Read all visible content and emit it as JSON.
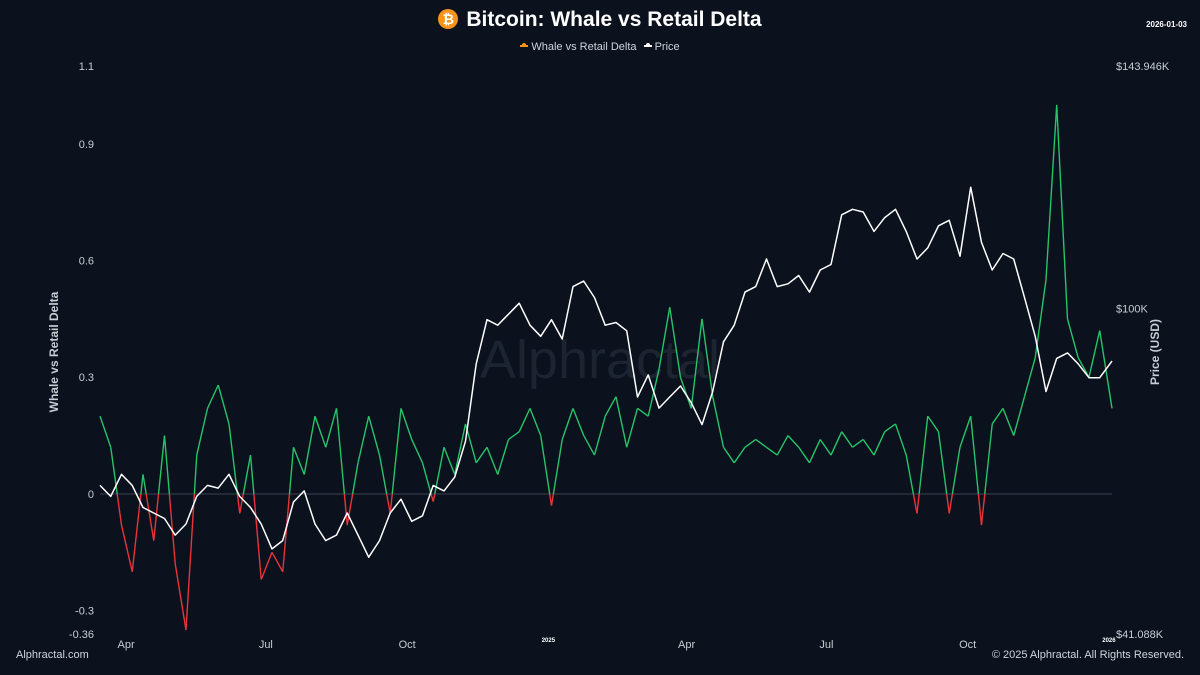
{
  "header": {
    "title": "Bitcoin: Whale vs Retail Delta",
    "date": "2026-01-03",
    "logo_icon": "bitcoin-icon"
  },
  "legend": [
    {
      "label": "Whale vs Retail Delta",
      "color": "#f7931a"
    },
    {
      "label": "Price",
      "color": "#ffffff"
    }
  ],
  "watermark": "Alphractal",
  "footer": {
    "left": "Alphractal.com",
    "right": "© 2025 Alphractal. All Rights Reserved."
  },
  "chart_data": {
    "type": "line",
    "title": "Bitcoin: Whale vs Retail Delta",
    "ylabel": "Whale vs Retail Delta",
    "y2label": "Price (USD)",
    "ylim": [
      -0.36,
      1.1
    ],
    "y_ticks": [
      "1.1",
      "0.9",
      "0.6",
      "0.3",
      "0",
      "-0.3",
      "-0.36"
    ],
    "y_tick_values": [
      1.1,
      0.9,
      0.6,
      0.3,
      0,
      -0.3,
      -0.36
    ],
    "y2_ticks": [
      "$143.946K",
      "$100K",
      "$41.088K"
    ],
    "y2_tick_values": [
      143946,
      100000,
      41088
    ],
    "x_ticks": [
      {
        "label": "Apr",
        "date": "2024-04-01"
      },
      {
        "label": "Jul",
        "date": "2024-07-01"
      },
      {
        "label": "Oct",
        "date": "2024-10-01"
      },
      {
        "label": "2025",
        "date": "2025-01-01",
        "year": true
      },
      {
        "label": "Apr",
        "date": "2025-04-01"
      },
      {
        "label": "Jul",
        "date": "2025-07-01"
      },
      {
        "label": "Oct",
        "date": "2025-10-01"
      },
      {
        "label": "2026",
        "date": "2026-01-01",
        "year": true
      }
    ],
    "x_range": [
      "2024-03-15",
      "2026-01-03"
    ],
    "grid": false,
    "legend_position": "top-center",
    "colors": {
      "positive": "#27c469",
      "negative": "#e8343a",
      "price": "#ffffff",
      "zero_line": "#3a4252"
    },
    "series": [
      {
        "name": "Whale vs Retail Delta",
        "points": [
          [
            "2024-03-15",
            0.2
          ],
          [
            "2024-03-22",
            0.12
          ],
          [
            "2024-03-29",
            -0.08
          ],
          [
            "2024-04-05",
            -0.2
          ],
          [
            "2024-04-12",
            0.05
          ],
          [
            "2024-04-19",
            -0.12
          ],
          [
            "2024-04-26",
            0.15
          ],
          [
            "2024-05-03",
            -0.18
          ],
          [
            "2024-05-10",
            -0.35
          ],
          [
            "2024-05-17",
            0.1
          ],
          [
            "2024-05-24",
            0.22
          ],
          [
            "2024-05-31",
            0.28
          ],
          [
            "2024-06-07",
            0.18
          ],
          [
            "2024-06-14",
            -0.05
          ],
          [
            "2024-06-21",
            0.1
          ],
          [
            "2024-06-28",
            -0.22
          ],
          [
            "2024-07-05",
            -0.15
          ],
          [
            "2024-07-12",
            -0.2
          ],
          [
            "2024-07-19",
            0.12
          ],
          [
            "2024-07-26",
            0.05
          ],
          [
            "2024-08-02",
            0.2
          ],
          [
            "2024-08-09",
            0.12
          ],
          [
            "2024-08-16",
            0.22
          ],
          [
            "2024-08-23",
            -0.08
          ],
          [
            "2024-08-30",
            0.08
          ],
          [
            "2024-09-06",
            0.2
          ],
          [
            "2024-09-13",
            0.1
          ],
          [
            "2024-09-20",
            -0.05
          ],
          [
            "2024-09-27",
            0.22
          ],
          [
            "2024-10-04",
            0.14
          ],
          [
            "2024-10-11",
            0.08
          ],
          [
            "2024-10-18",
            -0.02
          ],
          [
            "2024-10-25",
            0.12
          ],
          [
            "2024-11-01",
            0.05
          ],
          [
            "2024-11-08",
            0.18
          ],
          [
            "2024-11-15",
            0.08
          ],
          [
            "2024-11-22",
            0.12
          ],
          [
            "2024-11-29",
            0.05
          ],
          [
            "2024-12-06",
            0.14
          ],
          [
            "2024-12-13",
            0.16
          ],
          [
            "2024-12-20",
            0.22
          ],
          [
            "2024-12-27",
            0.15
          ],
          [
            "2025-01-03",
            -0.03
          ],
          [
            "2025-01-10",
            0.14
          ],
          [
            "2025-01-17",
            0.22
          ],
          [
            "2025-01-24",
            0.15
          ],
          [
            "2025-01-31",
            0.1
          ],
          [
            "2025-02-07",
            0.2
          ],
          [
            "2025-02-14",
            0.25
          ],
          [
            "2025-02-21",
            0.12
          ],
          [
            "2025-02-28",
            0.22
          ],
          [
            "2025-03-07",
            0.2
          ],
          [
            "2025-03-14",
            0.32
          ],
          [
            "2025-03-21",
            0.48
          ],
          [
            "2025-03-28",
            0.3
          ],
          [
            "2025-04-04",
            0.22
          ],
          [
            "2025-04-11",
            0.45
          ],
          [
            "2025-04-18",
            0.25
          ],
          [
            "2025-04-25",
            0.12
          ],
          [
            "2025-05-02",
            0.08
          ],
          [
            "2025-05-09",
            0.12
          ],
          [
            "2025-05-16",
            0.14
          ],
          [
            "2025-05-23",
            0.12
          ],
          [
            "2025-05-30",
            0.1
          ],
          [
            "2025-06-06",
            0.15
          ],
          [
            "2025-06-13",
            0.12
          ],
          [
            "2025-06-20",
            0.08
          ],
          [
            "2025-06-27",
            0.14
          ],
          [
            "2025-07-04",
            0.1
          ],
          [
            "2025-07-11",
            0.16
          ],
          [
            "2025-07-18",
            0.12
          ],
          [
            "2025-07-25",
            0.14
          ],
          [
            "2025-08-01",
            0.1
          ],
          [
            "2025-08-08",
            0.16
          ],
          [
            "2025-08-15",
            0.18
          ],
          [
            "2025-08-22",
            0.1
          ],
          [
            "2025-08-29",
            -0.05
          ],
          [
            "2025-09-05",
            0.2
          ],
          [
            "2025-09-12",
            0.16
          ],
          [
            "2025-09-19",
            -0.05
          ],
          [
            "2025-09-26",
            0.12
          ],
          [
            "2025-10-03",
            0.2
          ],
          [
            "2025-10-10",
            -0.08
          ],
          [
            "2025-10-17",
            0.18
          ],
          [
            "2025-10-24",
            0.22
          ],
          [
            "2025-10-31",
            0.15
          ],
          [
            "2025-11-07",
            0.25
          ],
          [
            "2025-11-14",
            0.35
          ],
          [
            "2025-11-21",
            0.55
          ],
          [
            "2025-11-28",
            1.0
          ],
          [
            "2025-12-05",
            0.45
          ],
          [
            "2025-12-12",
            0.35
          ],
          [
            "2025-12-19",
            0.3
          ],
          [
            "2025-12-26",
            0.42
          ],
          [
            "2026-01-03",
            0.22
          ]
        ]
      },
      {
        "name": "Price",
        "points": [
          [
            "2024-03-15",
            68000
          ],
          [
            "2024-03-22",
            66000
          ],
          [
            "2024-03-29",
            70000
          ],
          [
            "2024-04-05",
            68000
          ],
          [
            "2024-04-12",
            64000
          ],
          [
            "2024-04-19",
            63000
          ],
          [
            "2024-04-26",
            62000
          ],
          [
            "2024-05-03",
            59000
          ],
          [
            "2024-05-10",
            61000
          ],
          [
            "2024-05-17",
            66000
          ],
          [
            "2024-05-24",
            68000
          ],
          [
            "2024-05-31",
            67500
          ],
          [
            "2024-06-07",
            70000
          ],
          [
            "2024-06-14",
            66000
          ],
          [
            "2024-06-21",
            64000
          ],
          [
            "2024-06-28",
            61000
          ],
          [
            "2024-07-05",
            56500
          ],
          [
            "2024-07-12",
            58000
          ],
          [
            "2024-07-19",
            65000
          ],
          [
            "2024-07-26",
            67000
          ],
          [
            "2024-08-02",
            61000
          ],
          [
            "2024-08-09",
            58000
          ],
          [
            "2024-08-16",
            59000
          ],
          [
            "2024-08-23",
            63000
          ],
          [
            "2024-08-30",
            59000
          ],
          [
            "2024-09-06",
            55000
          ],
          [
            "2024-09-13",
            58000
          ],
          [
            "2024-09-20",
            63000
          ],
          [
            "2024-09-27",
            65500
          ],
          [
            "2024-10-04",
            61500
          ],
          [
            "2024-10-11",
            62500
          ],
          [
            "2024-10-18",
            68000
          ],
          [
            "2024-10-25",
            67000
          ],
          [
            "2024-11-01",
            69500
          ],
          [
            "2024-11-08",
            76000
          ],
          [
            "2024-11-15",
            90000
          ],
          [
            "2024-11-22",
            98000
          ],
          [
            "2024-11-29",
            97000
          ],
          [
            "2024-12-06",
            99000
          ],
          [
            "2024-12-13",
            101000
          ],
          [
            "2024-12-20",
            97000
          ],
          [
            "2024-12-27",
            95000
          ],
          [
            "2025-01-03",
            98000
          ],
          [
            "2025-01-10",
            94500
          ],
          [
            "2025-01-17",
            104000
          ],
          [
            "2025-01-24",
            105000
          ],
          [
            "2025-01-31",
            102000
          ],
          [
            "2025-02-07",
            97000
          ],
          [
            "2025-02-14",
            97500
          ],
          [
            "2025-02-21",
            96000
          ],
          [
            "2025-02-28",
            84000
          ],
          [
            "2025-03-07",
            88000
          ],
          [
            "2025-03-14",
            82000
          ],
          [
            "2025-03-21",
            84000
          ],
          [
            "2025-03-28",
            86000
          ],
          [
            "2025-04-04",
            83000
          ],
          [
            "2025-04-11",
            79000
          ],
          [
            "2025-04-18",
            85000
          ],
          [
            "2025-04-25",
            94000
          ],
          [
            "2025-05-02",
            97000
          ],
          [
            "2025-05-09",
            103000
          ],
          [
            "2025-05-16",
            104000
          ],
          [
            "2025-05-23",
            109000
          ],
          [
            "2025-05-30",
            104000
          ],
          [
            "2025-06-06",
            104500
          ],
          [
            "2025-06-13",
            106000
          ],
          [
            "2025-06-20",
            103000
          ],
          [
            "2025-06-27",
            107000
          ],
          [
            "2025-07-04",
            108000
          ],
          [
            "2025-07-11",
            117000
          ],
          [
            "2025-07-18",
            118000
          ],
          [
            "2025-07-25",
            117500
          ],
          [
            "2025-08-01",
            114000
          ],
          [
            "2025-08-08",
            116500
          ],
          [
            "2025-08-15",
            118000
          ],
          [
            "2025-08-22",
            114000
          ],
          [
            "2025-08-29",
            109000
          ],
          [
            "2025-09-05",
            111000
          ],
          [
            "2025-09-12",
            115000
          ],
          [
            "2025-09-19",
            116000
          ],
          [
            "2025-09-26",
            109500
          ],
          [
            "2025-10-03",
            122000
          ],
          [
            "2025-10-10",
            112000
          ],
          [
            "2025-10-17",
            107000
          ],
          [
            "2025-10-24",
            110000
          ],
          [
            "2025-10-31",
            109000
          ],
          [
            "2025-11-07",
            102000
          ],
          [
            "2025-11-14",
            95000
          ],
          [
            "2025-11-21",
            85000
          ],
          [
            "2025-11-28",
            91000
          ],
          [
            "2025-12-05",
            92000
          ],
          [
            "2025-12-12",
            90000
          ],
          [
            "2025-12-19",
            87500
          ],
          [
            "2025-12-26",
            87500
          ],
          [
            "2026-01-03",
            90500
          ]
        ]
      }
    ]
  }
}
